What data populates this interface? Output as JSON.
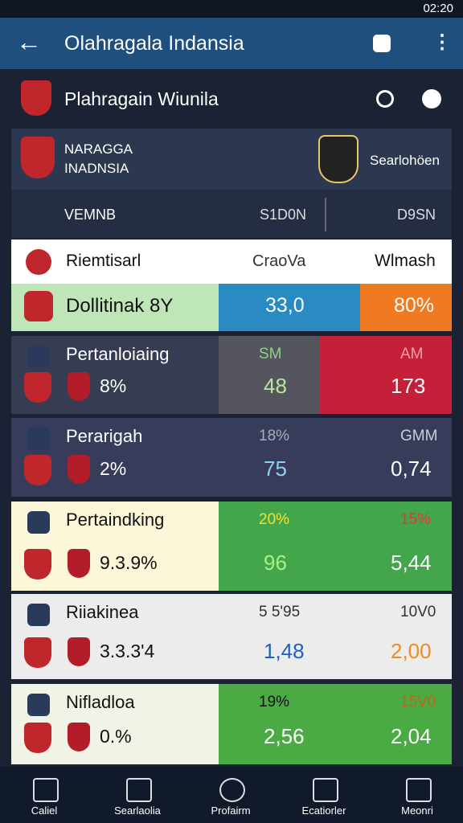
{
  "status_bar": {
    "time": "02:20"
  },
  "app_bar": {
    "title": "Olahragala Indansia"
  },
  "section": {
    "title": "Plahragain Wiunila"
  },
  "match": {
    "team_left": [
      "NARAGGA",
      "INADNSIA"
    ],
    "team_right": "Searlohöen",
    "stats": [
      "VEMNB",
      "S1D0N",
      "D9SN"
    ]
  },
  "table": {
    "header": [
      "Riemtisarl",
      "CraoVa",
      "Wlmash"
    ],
    "first_row": [
      "Dollitinak 8Y",
      "33,0",
      "80%"
    ],
    "rows": [
      [
        "Pertanloiaing",
        "8%",
        "SM",
        "48",
        "AM",
        "173"
      ],
      [
        "Perarigah",
        "2%",
        "18%",
        "75",
        "GMM",
        "0,74"
      ],
      [
        "Pertaindking",
        "9.3.9%",
        "20%",
        "96",
        "15%",
        "5,44"
      ],
      [
        "Riiakinea",
        "3.3.3'4",
        "5 5'95",
        "1,48",
        "10V0",
        "2,00"
      ],
      [
        "Nifladloa",
        "0.%",
        "19%",
        "2,56",
        "15V0",
        "2,04"
      ]
    ]
  },
  "nav": [
    "Caliel",
    "Searlaolia",
    "Profairm",
    "Ecatiorler",
    "Meonri"
  ]
}
